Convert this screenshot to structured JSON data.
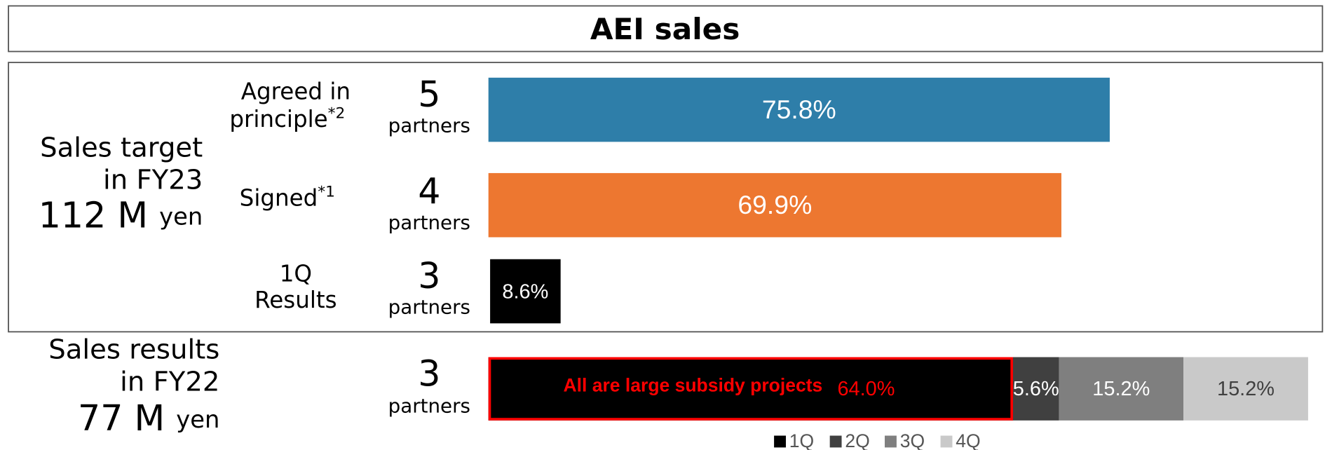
{
  "title": "AEI sales",
  "chart_data": [
    {
      "type": "bar",
      "group_label": [
        "Sales target",
        "in FY23"
      ],
      "amount": "112 M",
      "unit": "yen",
      "xlim": [
        0,
        100
      ],
      "rows": [
        {
          "label": [
            "Agreed in",
            "principle"
          ],
          "note": "*2",
          "partners": 5,
          "partners_label": "partners",
          "value": 75.8,
          "value_label": "75.8%",
          "color": "#2e7ea9"
        },
        {
          "label": [
            "Signed"
          ],
          "note": "*1",
          "partners": 4,
          "partners_label": "partners",
          "value": 69.9,
          "value_label": "69.9%",
          "color": "#ed7730"
        },
        {
          "label": [
            "1Q",
            "Results"
          ],
          "partners": 3,
          "partners_label": "partners",
          "value": 8.6,
          "value_label": "8.6%",
          "color": "#000000"
        }
      ]
    },
    {
      "type": "stacked_bar",
      "group_label": [
        "Sales results",
        "in FY22"
      ],
      "amount": "77 M",
      "unit": "yen",
      "partners": 3,
      "partners_label": "partners",
      "annotation": "All are large subsidy projects",
      "annotation_color": "#ff0000",
      "xlim": [
        0,
        100
      ],
      "series": [
        {
          "name": "1Q",
          "color": "#000000",
          "label_color": "#ff0000",
          "outline_color": "#ff0000",
          "values": [
            64.0
          ],
          "value_labels": [
            "64.0%"
          ]
        },
        {
          "name": "2Q",
          "color": "#404040",
          "label_color": "#ffffff",
          "values": [
            5.6
          ],
          "value_labels": [
            "5.6%"
          ]
        },
        {
          "name": "3Q",
          "color": "#7f7f7f",
          "label_color": "#ffffff",
          "values": [
            15.2
          ],
          "value_labels": [
            "15.2%"
          ]
        },
        {
          "name": "4Q",
          "color": "#c9c9c9",
          "label_color": "#404040",
          "values": [
            15.2
          ],
          "value_labels": [
            "15.2%"
          ]
        }
      ]
    }
  ]
}
